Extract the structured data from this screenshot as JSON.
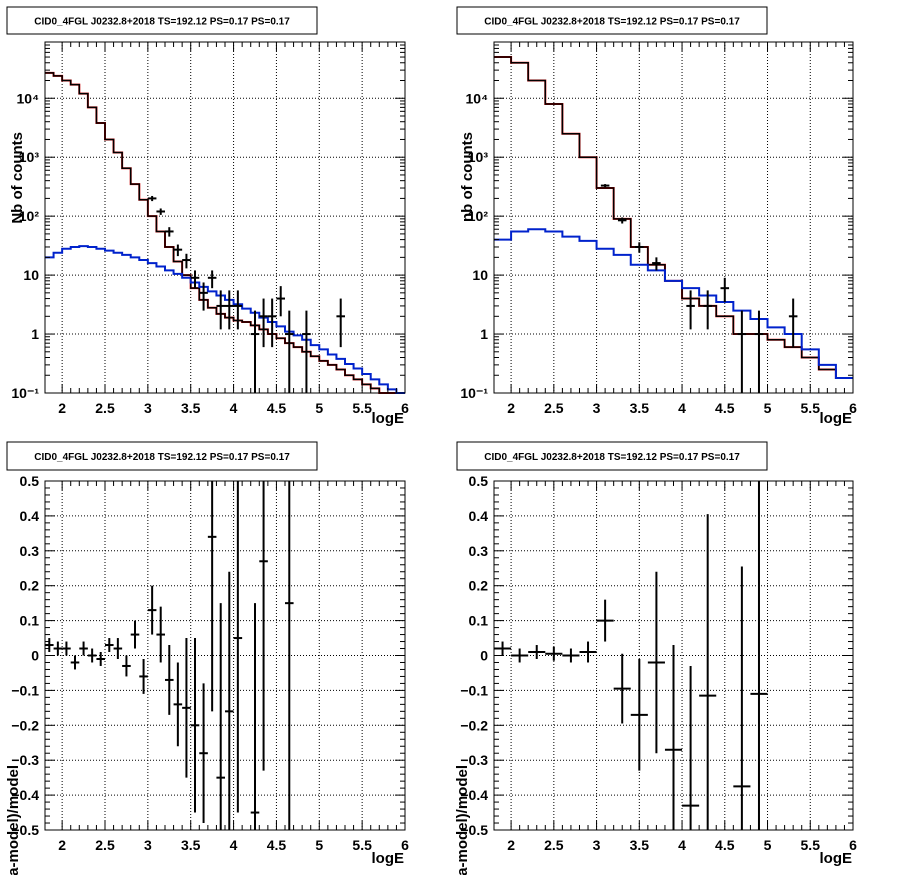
{
  "chart_data": [
    {
      "id": "tl",
      "type": "line",
      "title": "CID0_4FGL J0232.8+2018 TS=192.12 PS=0.17 PS=0.17",
      "xlabel": "logE",
      "ylabel": "Nb of counts",
      "yscale": "log",
      "xlim": [
        1.8,
        6.0
      ],
      "ylim": [
        0.1,
        90000
      ],
      "grid": true,
      "xticks": [
        2,
        2.5,
        3,
        3.5,
        4,
        4.5,
        5,
        5.5,
        6
      ],
      "xtick_labels": [
        "2",
        "2.5",
        "3",
        "3.5",
        "4",
        "4.5",
        "5",
        "5.5",
        "6"
      ],
      "yticks": [
        0.1,
        1,
        10,
        100,
        1000,
        10000
      ],
      "ytick_labels": [
        "10⁻¹",
        "1",
        "10",
        "10²",
        "10³",
        "10⁴"
      ],
      "bin_edges": [
        1.8,
        1.9,
        2.0,
        2.1,
        2.2,
        2.3,
        2.4,
        2.5,
        2.6,
        2.7,
        2.8,
        2.9,
        3.0,
        3.1,
        3.2,
        3.3,
        3.4,
        3.5,
        3.6,
        3.7,
        3.8,
        3.9,
        4.0,
        4.1,
        4.2,
        4.3,
        4.4,
        4.5,
        4.6,
        4.7,
        4.8,
        4.9,
        5.0,
        5.1,
        5.2,
        5.3,
        5.4,
        5.5,
        5.6,
        5.7,
        5.8,
        5.9,
        6.0
      ],
      "series": [
        {
          "values": [
            27000,
            24000,
            20000,
            17000,
            12000,
            7000,
            3800,
            2000,
            1200,
            650,
            350,
            190,
            100,
            55,
            30,
            17,
            10,
            6,
            3.8,
            2.8,
            2.2,
            1.9,
            1.7,
            1.6,
            1.4,
            1.2,
            1.0,
            0.85,
            0.7,
            0.6,
            0.5,
            0.42,
            0.35,
            0.3,
            0.25,
            0.2,
            0.17,
            0.14,
            0.12,
            0.1,
            0.08,
            0.06
          ],
          "color": "#e00000"
        },
        {
          "values": [
            27000,
            24000,
            20000,
            17000,
            12000,
            7000,
            3800,
            2000,
            1200,
            650,
            350,
            190,
            100,
            55,
            30,
            17,
            10,
            6,
            3.8,
            2.8,
            2.2,
            1.9,
            1.7,
            1.6,
            1.4,
            1.2,
            1.0,
            0.85,
            0.7,
            0.6,
            0.5,
            0.42,
            0.35,
            0.3,
            0.25,
            0.2,
            0.17,
            0.14,
            0.12,
            0.1,
            0.08,
            0.06
          ],
          "color": "#000000"
        },
        {
          "values": [
            20,
            24,
            28,
            30,
            31,
            30,
            28,
            26,
            24,
            22,
            20,
            18,
            16,
            14,
            12,
            10.5,
            9,
            7.5,
            6.3,
            5.3,
            4.5,
            3.8,
            3.2,
            2.7,
            2.3,
            1.9,
            1.6,
            1.35,
            1.1,
            0.95,
            0.8,
            0.65,
            0.55,
            0.45,
            0.38,
            0.31,
            0.26,
            0.21,
            0.17,
            0.14,
            0.115,
            0.095
          ],
          "color": "#0022cc"
        }
      ],
      "points": {
        "x": [
          3.05,
          3.15,
          3.25,
          3.35,
          3.45,
          3.55,
          3.65,
          3.75,
          3.85,
          3.95,
          4.05,
          4.25,
          4.35,
          4.45,
          4.55,
          4.65,
          4.85,
          5.25
        ],
        "y": [
          200,
          120,
          55,
          27,
          18,
          9,
          5,
          9,
          3,
          3,
          3,
          1,
          2,
          2,
          4,
          1,
          1,
          2
        ],
        "yerr_low": [
          20,
          15,
          10,
          6,
          5,
          3,
          2.5,
          3,
          1.8,
          1.8,
          1.8,
          0.9,
          1.4,
          1.4,
          2,
          0.9,
          0.9,
          1.4
        ],
        "yerr_high": [
          20,
          15,
          10,
          6,
          5,
          3,
          2.5,
          3,
          2.5,
          2.5,
          2.5,
          1.5,
          2,
          2,
          2.5,
          1.5,
          1.5,
          2
        ]
      }
    },
    {
      "id": "tr",
      "type": "line",
      "title": "CID0_4FGL J0232.8+2018 TS=192.12 PS=0.17 PS=0.17",
      "xlabel": "logE",
      "ylabel": "nb of counts",
      "yscale": "log",
      "xlim": [
        1.8,
        6.0
      ],
      "ylim": [
        0.1,
        90000
      ],
      "grid": true,
      "xticks": [
        2,
        2.5,
        3,
        3.5,
        4,
        4.5,
        5,
        5.5,
        6
      ],
      "xtick_labels": [
        "2",
        "2.5",
        "3",
        "3.5",
        "4",
        "4.5",
        "5",
        "5.5",
        "6"
      ],
      "yticks": [
        0.1,
        1,
        10,
        100,
        1000,
        10000
      ],
      "ytick_labels": [
        "10⁻¹",
        "1",
        "10",
        "10²",
        "10³",
        "10⁴"
      ],
      "bin_edges": [
        1.8,
        2.0,
        2.2,
        2.4,
        2.6,
        2.8,
        3.0,
        3.2,
        3.4,
        3.6,
        3.8,
        4.0,
        4.2,
        4.4,
        4.6,
        4.8,
        5.0,
        5.2,
        5.4,
        5.6,
        5.8,
        6.0
      ],
      "series": [
        {
          "values": [
            50000,
            40000,
            20000,
            8000,
            2500,
            1000,
            300,
            90,
            30,
            15,
            8,
            4,
            3,
            2,
            1,
            1,
            0.8,
            0.6,
            0.4,
            0.25,
            0.18
          ],
          "color": "#e00000"
        },
        {
          "values": [
            50000,
            40000,
            20000,
            8000,
            2500,
            1000,
            300,
            90,
            30,
            15,
            8,
            4,
            3,
            2,
            1,
            1,
            0.8,
            0.6,
            0.4,
            0.25,
            0.18
          ],
          "color": "#000000"
        },
        {
          "values": [
            40,
            55,
            60,
            55,
            45,
            38,
            28,
            22,
            15,
            12,
            8,
            6,
            4.5,
            3.5,
            2.5,
            1.8,
            1.3,
            1.0,
            0.55,
            0.3,
            0.18
          ],
          "color": "#0022cc"
        }
      ],
      "points": {
        "x": [
          3.1,
          3.3,
          3.5,
          3.7,
          4.1,
          4.3,
          4.5,
          4.7,
          4.9,
          5.3
        ],
        "y": [
          330,
          85,
          30,
          16,
          3,
          3,
          6,
          1,
          1,
          2
        ],
        "yerr_low": [
          20,
          10,
          6,
          4,
          1.8,
          1.8,
          2.5,
          0.9,
          0.9,
          1.4
        ],
        "yerr_high": [
          20,
          10,
          6,
          4,
          2.5,
          2.5,
          3,
          1.5,
          1.5,
          2
        ]
      }
    },
    {
      "id": "bl",
      "type": "scatter",
      "title": "CID0_4FGL J0232.8+2018 TS=192.12 PS=0.17 PS=0.17",
      "xlabel": "logE",
      "ylabel": "(data-model)/model",
      "xlim": [
        1.8,
        6.0
      ],
      "ylim": [
        -0.5,
        0.5
      ],
      "grid": true,
      "xticks": [
        2,
        2.5,
        3,
        3.5,
        4,
        4.5,
        5,
        5.5,
        6
      ],
      "xtick_labels": [
        "2",
        "2.5",
        "3",
        "3.5",
        "4",
        "4.5",
        "5",
        "5.5",
        "6"
      ],
      "yticks": [
        -0.5,
        -0.4,
        -0.3,
        -0.2,
        -0.1,
        0,
        0.1,
        0.2,
        0.3,
        0.4,
        0.5
      ],
      "ytick_labels": [
        "−0.5",
        "−0.4",
        "−0.3",
        "−0.2",
        "−0.1",
        "0",
        "0.1",
        "0.2",
        "0.3",
        "0.4",
        "0.5"
      ],
      "points": {
        "x": [
          1.85,
          1.95,
          2.05,
          2.15,
          2.25,
          2.35,
          2.45,
          2.55,
          2.65,
          2.75,
          2.85,
          2.95,
          3.05,
          3.15,
          3.25,
          3.35,
          3.45,
          3.55,
          3.65,
          3.75,
          3.85,
          3.95,
          4.05,
          4.25,
          4.35,
          4.65
        ],
        "xerr": 0.05,
        "y": [
          0.03,
          0.02,
          0.02,
          -0.02,
          0.02,
          0.0,
          -0.01,
          0.03,
          0.02,
          -0.03,
          0.06,
          -0.06,
          0.13,
          0.06,
          -0.07,
          -0.14,
          -0.15,
          -0.2,
          -0.28,
          0.34,
          -0.35,
          -0.16,
          0.05,
          -0.45,
          0.27,
          0.15
        ],
        "yerr": [
          0.02,
          0.02,
          0.02,
          0.02,
          0.02,
          0.02,
          0.02,
          0.02,
          0.03,
          0.03,
          0.04,
          0.05,
          0.07,
          0.08,
          0.1,
          0.12,
          0.2,
          0.25,
          0.2,
          0.5,
          0.5,
          0.4,
          0.5,
          0.6,
          0.6,
          0.7
        ]
      }
    },
    {
      "id": "br",
      "type": "scatter",
      "title": "CID0_4FGL J0232.8+2018 TS=192.12 PS=0.17 PS=0.17",
      "xlabel": "logE",
      "ylabel": "(data-model)/model",
      "xlim": [
        1.8,
        6.0
      ],
      "ylim": [
        -0.5,
        0.5
      ],
      "grid": true,
      "xticks": [
        2,
        2.5,
        3,
        3.5,
        4,
        4.5,
        5,
        5.5,
        6
      ],
      "xtick_labels": [
        "2",
        "2.5",
        "3",
        "3.5",
        "4",
        "4.5",
        "5",
        "5.5",
        "6"
      ],
      "yticks": [
        -0.5,
        -0.4,
        -0.3,
        -0.2,
        -0.1,
        0,
        0.1,
        0.2,
        0.3,
        0.4,
        0.5
      ],
      "ytick_labels": [
        "−0.5",
        "−0.4",
        "−0.3",
        "−0.2",
        "−0.1",
        "0",
        "0.1",
        "0.2",
        "0.3",
        "0.4",
        "0.5"
      ],
      "points": {
        "x": [
          1.9,
          2.1,
          2.3,
          2.5,
          2.7,
          2.9,
          3.1,
          3.3,
          3.5,
          3.7,
          3.9,
          4.1,
          4.3,
          4.7,
          4.9
        ],
        "xerr": 0.1,
        "y": [
          0.02,
          0.0,
          0.01,
          0.005,
          0.0,
          0.01,
          0.1,
          -0.095,
          -0.17,
          -0.02,
          -0.27,
          -0.43,
          -0.115,
          -0.375,
          -0.11
        ],
        "yerr": [
          0.02,
          0.02,
          0.02,
          0.02,
          0.02,
          0.03,
          0.06,
          0.1,
          0.16,
          0.26,
          0.3,
          0.4,
          0.52,
          0.63,
          0.7
        ]
      }
    }
  ]
}
